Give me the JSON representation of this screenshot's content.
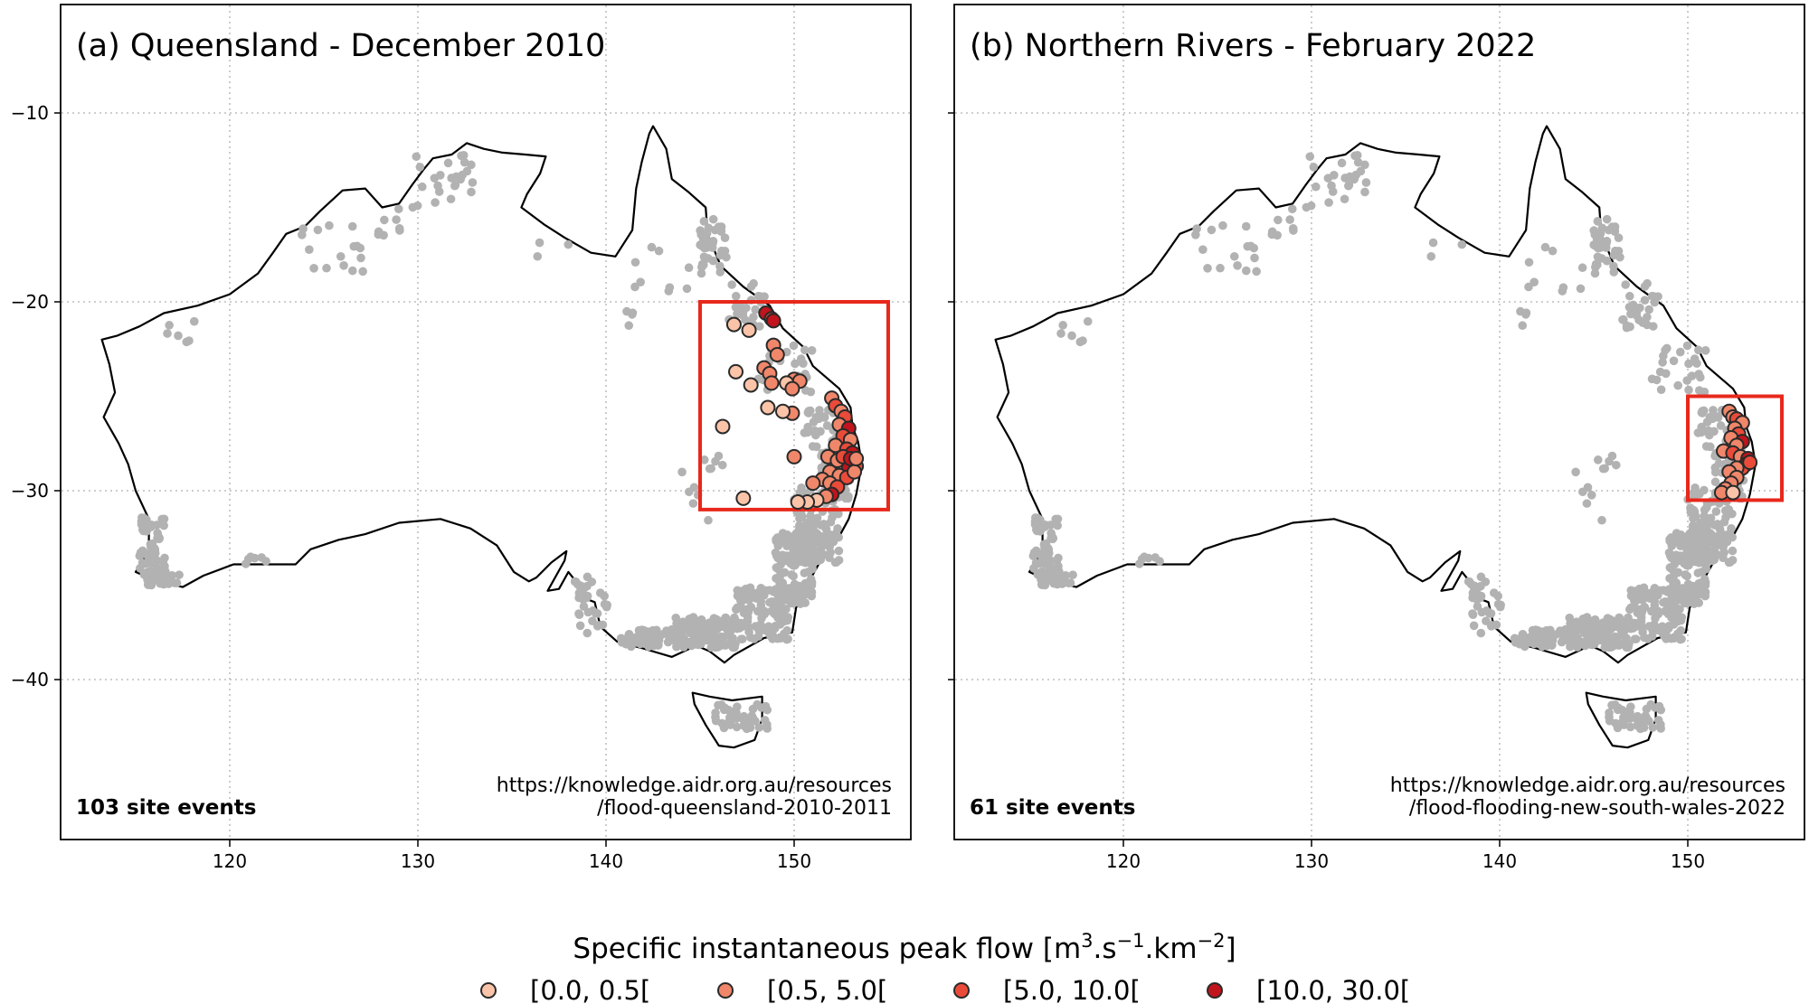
{
  "axes": {
    "x_ticks": [
      "120",
      "130",
      "140",
      "150"
    ],
    "y_ticks": [
      "−10",
      "−20",
      "−30",
      "−40"
    ],
    "x_range": [
      111.9,
      157.2
    ],
    "y_range": [
      -47.5,
      -7.0
    ]
  },
  "panels": [
    {
      "title": "(a) Queensland - December 2010",
      "count_label": "103 site events",
      "source_line1": "https://knowledge.aidr.org.au/resources",
      "source_line2": "/flood-queensland-2010-2011",
      "highlight_box": {
        "lon": [
          145.0,
          155.0
        ],
        "lat": [
          -31.0,
          -20.0
        ]
      }
    },
    {
      "title": "(b) Northern Rivers - February 2022",
      "count_label": "61 site events",
      "source_line1": "https://knowledge.aidr.org.au/resources",
      "source_line2": "/flood-flooding-new-south-wales-2022",
      "highlight_box": {
        "lon": [
          150.0,
          155.0
        ],
        "lat": [
          -30.5,
          -25.0
        ]
      }
    }
  ],
  "legend": {
    "title_main": "Specific instantaneous peak flow [m",
    "title_sup1": "3",
    "title_mid1": ".s",
    "title_sup2": "−1",
    "title_mid2": ".km",
    "title_sup3": "−2",
    "title_end": "]",
    "classes": [
      {
        "label": "[0.0, 0.5[",
        "color": "#fbc4a9"
      },
      {
        "label": "[0.5, 5.0[",
        "color": "#f0876a"
      },
      {
        "label": "[5.0, 10.0[",
        "color": "#ea4b39"
      },
      {
        "label": "[10.0, 30.0[",
        "color": "#c1141c"
      }
    ]
  }
}
